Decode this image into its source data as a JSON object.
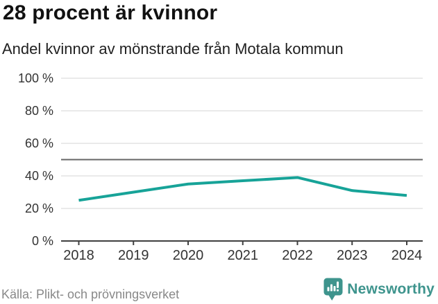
{
  "header": {
    "title": "28 procent är kvinnor",
    "subtitle": "Andel kvinnor av mönstrande från Motala kommun"
  },
  "chart_data": {
    "type": "line",
    "x": [
      2018,
      2019,
      2020,
      2021,
      2022,
      2023,
      2024
    ],
    "values": [
      25,
      30,
      35,
      37,
      39,
      31,
      28
    ],
    "series": [
      {
        "name": "Andel kvinnor av mönstrande",
        "values": [
          25,
          30,
          35,
          37,
          39,
          31,
          28
        ]
      }
    ],
    "title": "28 procent är kvinnor",
    "subtitle": "Andel kvinnor av mönstrande från Motala kommun",
    "xlabel": "",
    "ylabel": "",
    "ylim": [
      0,
      100
    ],
    "yticks": [
      0,
      20,
      40,
      60,
      80,
      100
    ],
    "ytick_format": "{v} %",
    "xticks": [
      2018,
      2019,
      2020,
      2021,
      2022,
      2023,
      2024
    ],
    "reference_line": 50,
    "grid": "horizontal",
    "legend": "none",
    "line_color": "#17a398",
    "reference_line_color": "#666666",
    "grid_color": "#e4e4e4",
    "axis_color": "#3f3f3f",
    "tick_label_color": "#333333"
  },
  "footer": {
    "source": "Källa: Plikt- och prövningsverket",
    "brand": "Newsworthy",
    "brand_color": "#3e948d",
    "logo_icon": "newsworthy-speech-bubble-bar-chart-icon"
  }
}
